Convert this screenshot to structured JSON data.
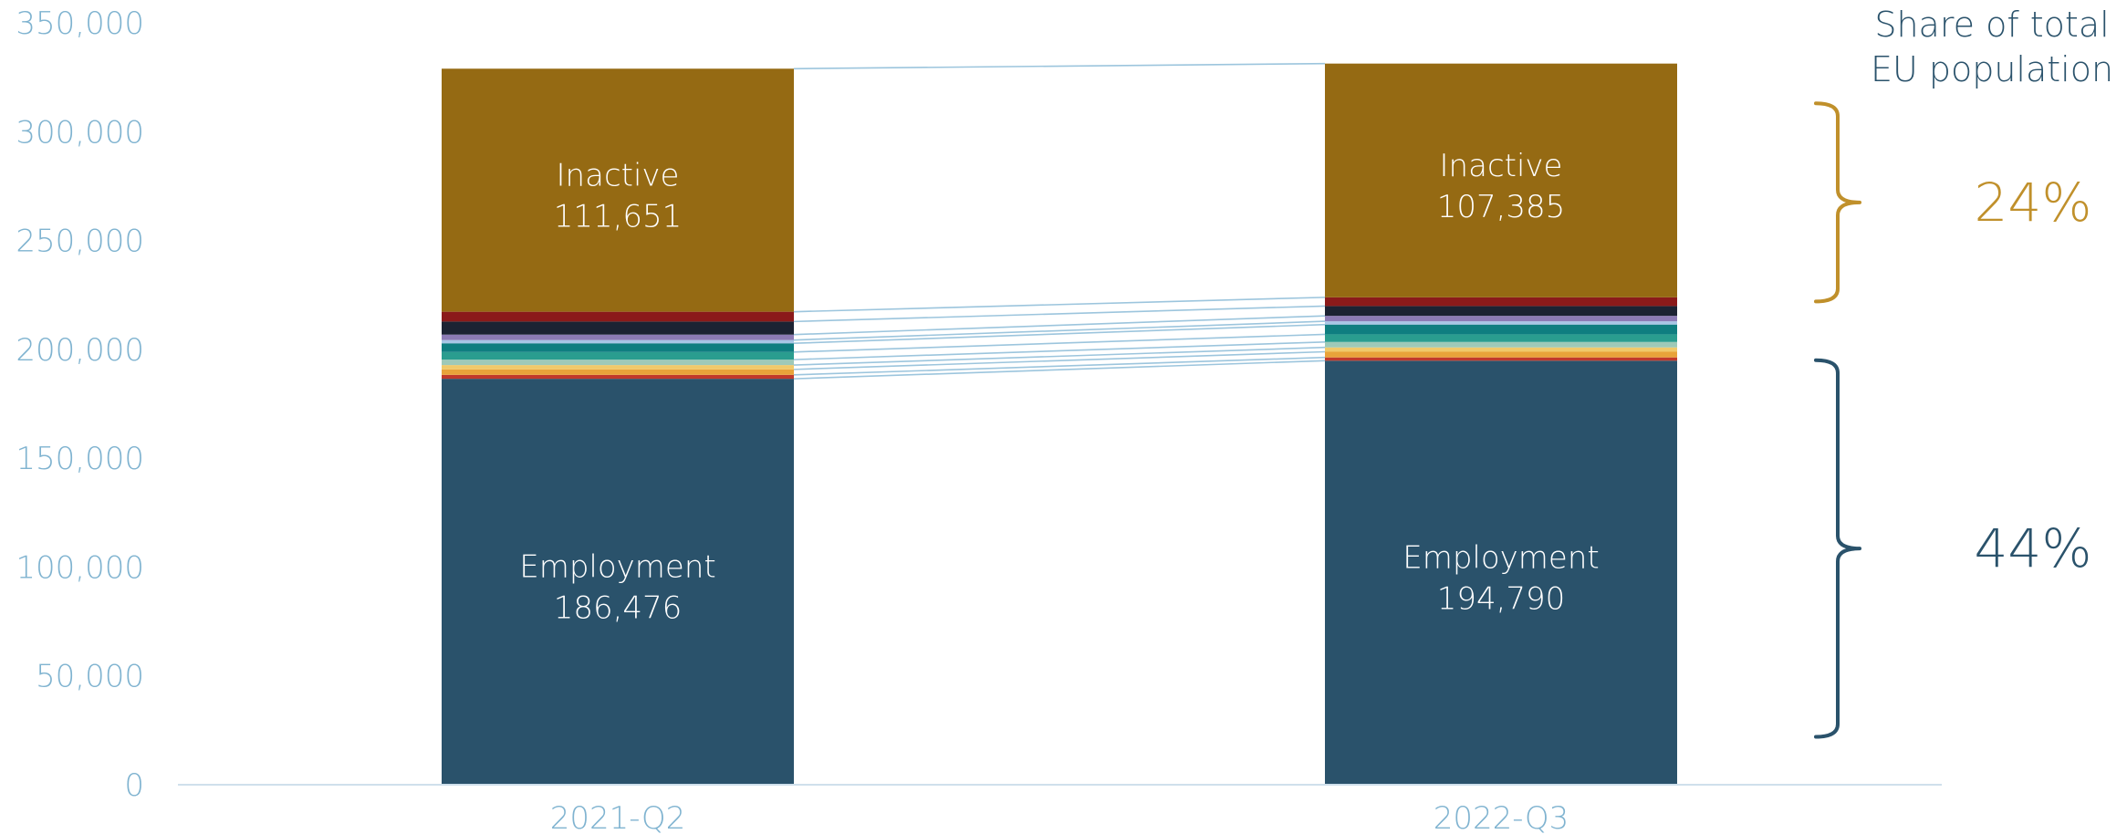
{
  "chart_data": {
    "type": "bar",
    "stacked": true,
    "categories": [
      "2021-Q2",
      "2022-Q3"
    ],
    "ylim": [
      0,
      350000
    ],
    "yticks": [
      0,
      50000,
      100000,
      150000,
      200000,
      250000,
      300000,
      350000
    ],
    "ytick_labels": [
      "0",
      "50,000",
      "100,000",
      "150,000",
      "200,000",
      "250,000",
      "300,000",
      "350,000"
    ],
    "grid": false,
    "connector_color": "#9cc5dd",
    "series": [
      {
        "color": "#2a526b",
        "values": [
          186476,
          194790
        ],
        "label": "Employment",
        "value_labels": [
          "186,476",
          "194,790"
        ]
      },
      {
        "color": "#c0392b",
        "values": [
          1800,
          1500
        ]
      },
      {
        "color": "#e8a33a",
        "values": [
          2500,
          2600
        ]
      },
      {
        "color": "#f0c96a",
        "values": [
          2000,
          2000
        ]
      },
      {
        "color": "#9ec9b8",
        "values": [
          2500,
          2500
        ]
      },
      {
        "color": "#2a9d8f",
        "values": [
          3500,
          3500
        ]
      },
      {
        "color": "#0f7e80",
        "values": [
          4000,
          4500
        ]
      },
      {
        "color": "#a8c6e6",
        "values": [
          1500,
          1500
        ]
      },
      {
        "color": "#8c7bb5",
        "values": [
          2500,
          2500
        ]
      },
      {
        "color": "#1c2333",
        "values": [
          6000,
          4500
        ]
      },
      {
        "color": "#8b1a1a",
        "values": [
          4500,
          4000
        ]
      },
      {
        "color": "#956a13",
        "values": [
          111651,
          107385
        ],
        "label": "Inactive",
        "value_labels": [
          "111,651",
          "107,385"
        ]
      }
    ],
    "annotations": {
      "title": [
        "Share of total",
        "EU population"
      ],
      "brackets": [
        {
          "value": "24%",
          "color": "#c0902b",
          "range": [
            222000,
            313000
          ]
        },
        {
          "value": "44%",
          "color": "#2a526b",
          "range": [
            22000,
            195000
          ]
        }
      ]
    }
  }
}
